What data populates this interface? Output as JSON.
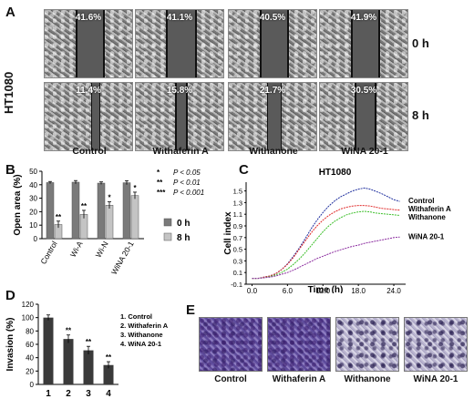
{
  "panel_a": {
    "letter": "A",
    "cell_line": "HT1080",
    "time_labels": [
      "0 h",
      "8 h"
    ],
    "columns": [
      "Control",
      "Withaferin A",
      "Withanone",
      "WiNA 20-1"
    ],
    "percent_0h": [
      "41.6%",
      "41.1%",
      "40.5%",
      "41.9%"
    ],
    "percent_8h": [
      "11.4%",
      "15.8%",
      "21.7%",
      "30.5%"
    ]
  },
  "panel_b": {
    "letter": "B",
    "chart_data": {
      "type": "bar",
      "categories": [
        "Control",
        "Wi-A",
        "Wi-N",
        "WiNA 20-1"
      ],
      "series": [
        {
          "name": "0 h",
          "values": [
            41.6,
            41.9,
            41.2,
            41.5
          ],
          "errors": [
            0.8,
            1.2,
            0.9,
            1.5
          ]
        },
        {
          "name": "8 h",
          "values": [
            10.5,
            18.0,
            24.8,
            32.0
          ],
          "errors": [
            2.5,
            3.0,
            2.5,
            2.5
          ]
        }
      ],
      "significance_8h": [
        "**",
        "**",
        "*",
        "*"
      ],
      "ylabel": "Open area (%)",
      "yticks": [
        "0",
        "10",
        "20",
        "30",
        "40",
        "50"
      ],
      "ylim": [
        0,
        50
      ],
      "colors": {
        "0 h": "#7a7a7a",
        "8 h": "#c4c4c4"
      },
      "significance_key": [
        "*",
        "**",
        "***"
      ],
      "significance_thresholds": [
        "P < 0.05",
        "P < 0.01",
        "P < 0.001"
      ]
    }
  },
  "panel_c": {
    "letter": "C",
    "chart_data": {
      "type": "line",
      "title": "HT1080",
      "xlabel": "Time (h)",
      "ylabel": "Cell index",
      "xticks": [
        "0.0",
        "6.0",
        "12.0",
        "18.0",
        "24.0"
      ],
      "yticks": [
        "-0.1",
        "0.1",
        "0.3",
        "0.5",
        "0.7",
        "0.9",
        "1.1",
        "1.3",
        "1.5"
      ],
      "xlim": [
        -1,
        26
      ],
      "ylim": [
        -0.1,
        1.65
      ],
      "series": [
        {
          "name": "Control",
          "color": "#1f2f9e",
          "x": [
            0,
            1,
            2,
            3,
            4,
            5,
            6,
            7,
            8,
            9,
            10,
            11,
            12,
            13,
            14,
            15,
            16,
            17,
            18,
            19,
            20,
            21,
            22,
            23,
            24,
            25
          ],
          "y": [
            0.0,
            0.0,
            0.02,
            0.04,
            0.08,
            0.15,
            0.25,
            0.38,
            0.52,
            0.68,
            0.85,
            1.0,
            1.13,
            1.24,
            1.33,
            1.4,
            1.45,
            1.5,
            1.53,
            1.55,
            1.53,
            1.49,
            1.45,
            1.4,
            1.35,
            1.32
          ]
        },
        {
          "name": "Withaferin A",
          "color": "#e02a2a",
          "x": [
            0,
            1,
            2,
            3,
            4,
            5,
            6,
            7,
            8,
            9,
            10,
            11,
            12,
            13,
            14,
            15,
            16,
            17,
            18,
            19,
            20,
            21,
            22,
            23,
            24,
            25
          ],
          "y": [
            0.0,
            0.0,
            0.02,
            0.04,
            0.08,
            0.15,
            0.24,
            0.36,
            0.5,
            0.64,
            0.78,
            0.9,
            1.0,
            1.08,
            1.14,
            1.19,
            1.22,
            1.24,
            1.25,
            1.25,
            1.24,
            1.22,
            1.2,
            1.19,
            1.18,
            1.17
          ]
        },
        {
          "name": "Withanone",
          "color": "#3cbf2a",
          "x": [
            0,
            1,
            2,
            3,
            4,
            5,
            6,
            7,
            8,
            9,
            10,
            11,
            12,
            13,
            14,
            15,
            16,
            17,
            18,
            19,
            20,
            21,
            22,
            23,
            24,
            25
          ],
          "y": [
            0.0,
            0.0,
            0.01,
            0.03,
            0.06,
            0.1,
            0.16,
            0.24,
            0.33,
            0.44,
            0.56,
            0.68,
            0.8,
            0.9,
            0.98,
            1.04,
            1.09,
            1.12,
            1.14,
            1.15,
            1.14,
            1.12,
            1.11,
            1.1,
            1.09,
            1.08
          ]
        },
        {
          "name": "WiNA 20-1",
          "color": "#8a2a9e",
          "x": [
            0,
            1,
            2,
            3,
            4,
            5,
            6,
            7,
            8,
            9,
            10,
            11,
            12,
            13,
            14,
            15,
            16,
            17,
            18,
            19,
            20,
            21,
            22,
            23,
            24,
            25
          ],
          "y": [
            0.0,
            0.0,
            0.01,
            0.02,
            0.04,
            0.07,
            0.1,
            0.14,
            0.19,
            0.24,
            0.29,
            0.34,
            0.38,
            0.42,
            0.46,
            0.49,
            0.52,
            0.55,
            0.57,
            0.6,
            0.62,
            0.64,
            0.66,
            0.68,
            0.7,
            0.71
          ]
        }
      ]
    }
  },
  "panel_d": {
    "letter": "D",
    "chart_data": {
      "type": "bar",
      "categories": [
        "1",
        "2",
        "3",
        "4"
      ],
      "values": [
        100,
        68,
        51,
        29
      ],
      "errors": [
        4,
        6,
        6,
        5
      ],
      "significance": [
        "",
        "**",
        "**",
        "**"
      ],
      "ylabel": "Invasion (%)",
      "yticks": [
        "0",
        "20",
        "40",
        "60",
        "80",
        "100",
        "120"
      ],
      "ylim": [
        0,
        120
      ],
      "color": "#3a3a3a",
      "legend": [
        "1. Control",
        "2. Withaferin A",
        "3. Withanone",
        "4. WiNA 20-1"
      ]
    }
  },
  "panel_e": {
    "letter": "E",
    "labels": [
      "Control",
      "Withaferin A",
      "Withanone",
      "WiNA 20-1"
    ]
  }
}
